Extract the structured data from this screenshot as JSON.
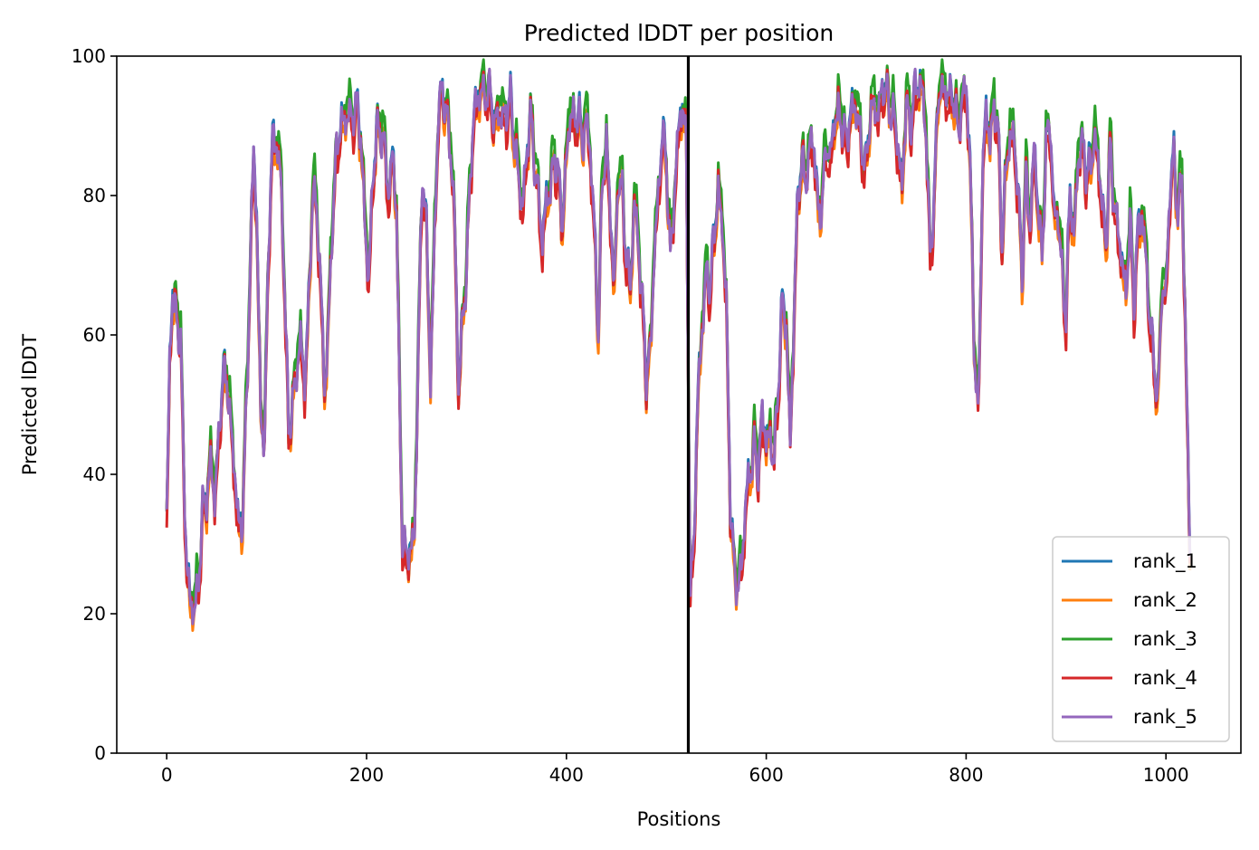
{
  "chart_data": {
    "type": "line",
    "title": "Predicted lDDT per position",
    "xlabel": "Positions",
    "ylabel": "Predicted lDDT",
    "xlim": [
      -50,
      1075
    ],
    "ylim": [
      0,
      100
    ],
    "x_ticks": [
      0,
      200,
      400,
      600,
      800,
      1000
    ],
    "y_ticks": [
      0,
      20,
      40,
      60,
      80,
      100
    ],
    "vline": 522,
    "grid": false,
    "legend_position": "bottom-right",
    "series": [
      {
        "name": "rank_1",
        "color": "#1f77b4",
        "offset": 0.3
      },
      {
        "name": "rank_2",
        "color": "#ff7f0e",
        "offset": -0.6
      },
      {
        "name": "rank_3",
        "color": "#2ca02c",
        "offset": 0.9
      },
      {
        "name": "rank_4",
        "color": "#d62728",
        "offset": -0.9
      },
      {
        "name": "rank_5",
        "color": "#9467bd",
        "offset": 0.0
      }
    ],
    "profile": [
      [
        0,
        33
      ],
      [
        3,
        55
      ],
      [
        6,
        66
      ],
      [
        10,
        63
      ],
      [
        14,
        60
      ],
      [
        17,
        40
      ],
      [
        20,
        26
      ],
      [
        24,
        21
      ],
      [
        28,
        22
      ],
      [
        32,
        25
      ],
      [
        36,
        34
      ],
      [
        40,
        36
      ],
      [
        44,
        43
      ],
      [
        48,
        37
      ],
      [
        52,
        44
      ],
      [
        56,
        53
      ],
      [
        60,
        55
      ],
      [
        64,
        48
      ],
      [
        68,
        40
      ],
      [
        72,
        31
      ],
      [
        76,
        34
      ],
      [
        80,
        52
      ],
      [
        84,
        72
      ],
      [
        87,
        86
      ],
      [
        90,
        76
      ],
      [
        94,
        49
      ],
      [
        98,
        46
      ],
      [
        102,
        73
      ],
      [
        106,
        87
      ],
      [
        110,
        88
      ],
      [
        114,
        84
      ],
      [
        118,
        67
      ],
      [
        122,
        45
      ],
      [
        126,
        50
      ],
      [
        130,
        56
      ],
      [
        134,
        60
      ],
      [
        138,
        52
      ],
      [
        142,
        63
      ],
      [
        146,
        82
      ],
      [
        150,
        79
      ],
      [
        154,
        67
      ],
      [
        158,
        51
      ],
      [
        162,
        62
      ],
      [
        166,
        78
      ],
      [
        170,
        86
      ],
      [
        174,
        89
      ],
      [
        178,
        91
      ],
      [
        182,
        93
      ],
      [
        186,
        91
      ],
      [
        190,
        92
      ],
      [
        194,
        89
      ],
      [
        198,
        78
      ],
      [
        202,
        68
      ],
      [
        206,
        80
      ],
      [
        210,
        89
      ],
      [
        214,
        90
      ],
      [
        218,
        88
      ],
      [
        222,
        79
      ],
      [
        226,
        85
      ],
      [
        230,
        79
      ],
      [
        233,
        52
      ],
      [
        236,
        31
      ],
      [
        240,
        27
      ],
      [
        244,
        29
      ],
      [
        248,
        32
      ],
      [
        252,
        60
      ],
      [
        256,
        83
      ],
      [
        260,
        74
      ],
      [
        264,
        54
      ],
      [
        268,
        75
      ],
      [
        272,
        92
      ],
      [
        276,
        94
      ],
      [
        280,
        92
      ],
      [
        284,
        88
      ],
      [
        288,
        77
      ],
      [
        292,
        51
      ],
      [
        296,
        62
      ],
      [
        300,
        70
      ],
      [
        304,
        84
      ],
      [
        308,
        91
      ],
      [
        312,
        94
      ],
      [
        316,
        96
      ],
      [
        320,
        95
      ],
      [
        324,
        94
      ],
      [
        328,
        89
      ],
      [
        332,
        93
      ],
      [
        336,
        92
      ],
      [
        340,
        91
      ],
      [
        344,
        93
      ],
      [
        348,
        88
      ],
      [
        352,
        84
      ],
      [
        356,
        78
      ],
      [
        360,
        84
      ],
      [
        364,
        92
      ],
      [
        368,
        86
      ],
      [
        372,
        80
      ],
      [
        376,
        72
      ],
      [
        380,
        79
      ],
      [
        384,
        82
      ],
      [
        388,
        86
      ],
      [
        392,
        82
      ],
      [
        396,
        75
      ],
      [
        400,
        86
      ],
      [
        404,
        93
      ],
      [
        408,
        90
      ],
      [
        412,
        91
      ],
      [
        416,
        88
      ],
      [
        420,
        92
      ],
      [
        424,
        86
      ],
      [
        428,
        74
      ],
      [
        432,
        60
      ],
      [
        436,
        83
      ],
      [
        440,
        88
      ],
      [
        444,
        76
      ],
      [
        448,
        66
      ],
      [
        452,
        84
      ],
      [
        456,
        81
      ],
      [
        460,
        70
      ],
      [
        464,
        66
      ],
      [
        468,
        80
      ],
      [
        472,
        74
      ],
      [
        476,
        64
      ],
      [
        480,
        53
      ],
      [
        484,
        58
      ],
      [
        488,
        73
      ],
      [
        492,
        80
      ],
      [
        496,
        88
      ],
      [
        500,
        85
      ],
      [
        504,
        72
      ],
      [
        508,
        80
      ],
      [
        512,
        88
      ],
      [
        516,
        93
      ],
      [
        520,
        88
      ],
      [
        524,
        22
      ],
      [
        528,
        32
      ],
      [
        532,
        52
      ],
      [
        536,
        62
      ],
      [
        540,
        70
      ],
      [
        544,
        66
      ],
      [
        548,
        74
      ],
      [
        552,
        81
      ],
      [
        556,
        77
      ],
      [
        560,
        65
      ],
      [
        564,
        35
      ],
      [
        568,
        26
      ],
      [
        572,
        25
      ],
      [
        576,
        28
      ],
      [
        580,
        36
      ],
      [
        584,
        40
      ],
      [
        588,
        45
      ],
      [
        592,
        41
      ],
      [
        596,
        48
      ],
      [
        600,
        44
      ],
      [
        604,
        46
      ],
      [
        608,
        43
      ],
      [
        612,
        52
      ],
      [
        616,
        64
      ],
      [
        620,
        62
      ],
      [
        624,
        45
      ],
      [
        628,
        64
      ],
      [
        632,
        80
      ],
      [
        636,
        85
      ],
      [
        640,
        83
      ],
      [
        644,
        88
      ],
      [
        648,
        86
      ],
      [
        652,
        77
      ],
      [
        656,
        80
      ],
      [
        660,
        88
      ],
      [
        664,
        84
      ],
      [
        668,
        90
      ],
      [
        672,
        93
      ],
      [
        676,
        91
      ],
      [
        680,
        87
      ],
      [
        684,
        90
      ],
      [
        688,
        94
      ],
      [
        692,
        92
      ],
      [
        696,
        86
      ],
      [
        700,
        83
      ],
      [
        704,
        92
      ],
      [
        708,
        94
      ],
      [
        712,
        92
      ],
      [
        716,
        94
      ],
      [
        720,
        95
      ],
      [
        724,
        93
      ],
      [
        728,
        92
      ],
      [
        732,
        86
      ],
      [
        736,
        80
      ],
      [
        740,
        95
      ],
      [
        744,
        90
      ],
      [
        748,
        94
      ],
      [
        752,
        95
      ],
      [
        756,
        96
      ],
      [
        760,
        90
      ],
      [
        764,
        71
      ],
      [
        768,
        78
      ],
      [
        772,
        95
      ],
      [
        776,
        96
      ],
      [
        780,
        95
      ],
      [
        784,
        93
      ],
      [
        788,
        94
      ],
      [
        792,
        90
      ],
      [
        796,
        94
      ],
      [
        800,
        95
      ],
      [
        804,
        84
      ],
      [
        808,
        60
      ],
      [
        812,
        48
      ],
      [
        816,
        80
      ],
      [
        820,
        92
      ],
      [
        824,
        88
      ],
      [
        828,
        94
      ],
      [
        832,
        89
      ],
      [
        836,
        72
      ],
      [
        840,
        84
      ],
      [
        844,
        90
      ],
      [
        848,
        88
      ],
      [
        852,
        80
      ],
      [
        856,
        68
      ],
      [
        860,
        84
      ],
      [
        864,
        76
      ],
      [
        868,
        86
      ],
      [
        872,
        78
      ],
      [
        876,
        72
      ],
      [
        880,
        88
      ],
      [
        884,
        90
      ],
      [
        888,
        76
      ],
      [
        892,
        78
      ],
      [
        896,
        70
      ],
      [
        900,
        62
      ],
      [
        904,
        80
      ],
      [
        908,
        74
      ],
      [
        912,
        86
      ],
      [
        916,
        88
      ],
      [
        920,
        82
      ],
      [
        924,
        84
      ],
      [
        928,
        89
      ],
      [
        932,
        86
      ],
      [
        936,
        78
      ],
      [
        940,
        72
      ],
      [
        944,
        88
      ],
      [
        948,
        80
      ],
      [
        952,
        74
      ],
      [
        956,
        70
      ],
      [
        960,
        66
      ],
      [
        964,
        78
      ],
      [
        968,
        64
      ],
      [
        972,
        74
      ],
      [
        976,
        78
      ],
      [
        980,
        72
      ],
      [
        984,
        62
      ],
      [
        988,
        55
      ],
      [
        992,
        50
      ],
      [
        996,
        68
      ],
      [
        1000,
        66
      ],
      [
        1004,
        80
      ],
      [
        1008,
        85
      ],
      [
        1012,
        78
      ],
      [
        1016,
        84
      ],
      [
        1020,
        56
      ],
      [
        1024,
        28
      ]
    ]
  },
  "legend": {
    "items": [
      "rank_1",
      "rank_2",
      "rank_3",
      "rank_4",
      "rank_5"
    ]
  }
}
